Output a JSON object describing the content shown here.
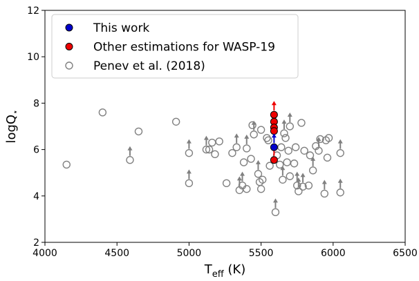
{
  "chart_data": {
    "type": "scatter",
    "xlabel": [
      "T",
      "eff",
      " (K)"
    ],
    "ylabel": [
      "logQ",
      "⋆"
    ],
    "xlim": [
      4000,
      6500
    ],
    "xticks": [
      4000,
      4500,
      5000,
      5500,
      6000,
      6500
    ],
    "ylim": [
      2,
      12
    ],
    "yticks": [
      2,
      4,
      6,
      8,
      10,
      12
    ],
    "legend": "upper left",
    "series": [
      {
        "name": "This work",
        "color": "#0000cc",
        "marker": "filled",
        "x": [
          5590
        ],
        "values": [
          6.1
        ],
        "lower_limit": [
          true
        ]
      },
      {
        "name": "Other estimations for WASP-19",
        "color": "#ee0000",
        "marker": "filled",
        "x": [
          5590,
          5590,
          5590,
          5590,
          5590
        ],
        "values": [
          7.5,
          7.2,
          6.95,
          6.8,
          5.55
        ],
        "lower_limit": [
          true,
          false,
          false,
          false,
          true
        ]
      },
      {
        "name": "Penev et al. (2018)",
        "color": "#808080",
        "marker": "open",
        "x": [
          4150,
          4400,
          4590,
          4650,
          4910,
          5000,
          5000,
          5120,
          5140,
          5160,
          5180,
          5210,
          5260,
          5300,
          5330,
          5350,
          5370,
          5380,
          5400,
          5400,
          5430,
          5440,
          5450,
          5480,
          5490,
          5500,
          5500,
          5510,
          5540,
          5550,
          5560,
          5600,
          5610,
          5630,
          5640,
          5650,
          5660,
          5670,
          5680,
          5690,
          5700,
          5700,
          5730,
          5740,
          5750,
          5760,
          5780,
          5790,
          5800,
          5830,
          5840,
          5860,
          5880,
          5900,
          5910,
          5940,
          5950,
          5960,
          5970,
          6050,
          6050
        ],
        "values": [
          5.35,
          7.6,
          5.55,
          6.78,
          7.2,
          5.85,
          4.55,
          6.0,
          6.0,
          6.3,
          5.8,
          6.35,
          4.55,
          5.85,
          6.1,
          4.25,
          4.45,
          5.45,
          6.05,
          4.3,
          5.6,
          7.05,
          6.65,
          4.95,
          4.6,
          4.3,
          6.85,
          4.7,
          6.5,
          6.4,
          5.3,
          3.3,
          5.75,
          5.35,
          6.1,
          4.7,
          6.7,
          6.5,
          5.45,
          5.95,
          7.0,
          4.85,
          5.4,
          6.1,
          4.45,
          4.2,
          7.15,
          4.4,
          5.95,
          4.45,
          5.75,
          5.1,
          6.15,
          5.95,
          6.45,
          4.1,
          6.4,
          5.65,
          6.5,
          5.85,
          4.15
        ],
        "lower_limit": [
          false,
          false,
          true,
          false,
          false,
          true,
          true,
          true,
          false,
          false,
          false,
          false,
          false,
          false,
          true,
          true,
          true,
          false,
          true,
          false,
          false,
          false,
          true,
          true,
          false,
          false,
          false,
          false,
          false,
          false,
          false,
          true,
          false,
          false,
          false,
          true,
          true,
          false,
          false,
          false,
          true,
          false,
          false,
          false,
          true,
          true,
          false,
          true,
          false,
          false,
          false,
          true,
          false,
          true,
          false,
          true,
          false,
          false,
          false,
          true,
          true
        ]
      }
    ]
  }
}
